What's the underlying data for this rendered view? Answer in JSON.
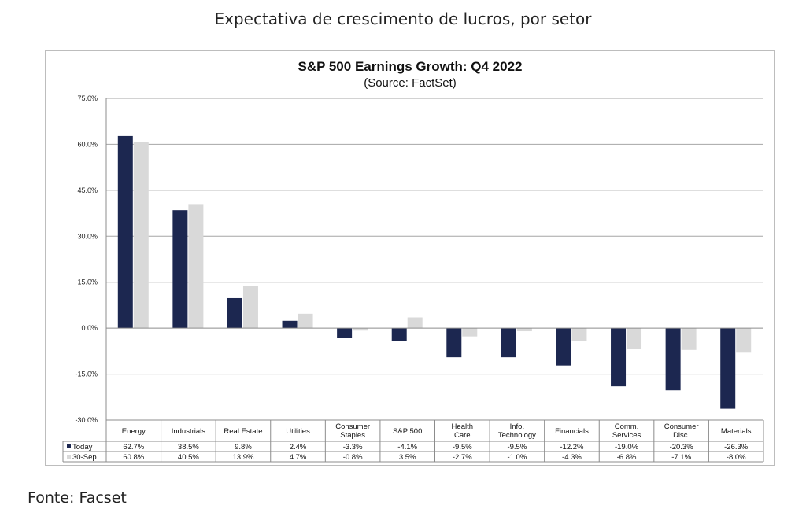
{
  "heading": "Expectativa de crescimento de lucros, por setor",
  "source": {
    "label": "Fonte:",
    "value": "Facset"
  },
  "chart_data": {
    "type": "bar",
    "title": "S&P 500 Earnings Growth: Q4 2022",
    "subtitle": "(Source: FactSet)",
    "ylim": [
      -30,
      75
    ],
    "yticks": [
      75,
      60,
      45,
      30,
      15,
      0,
      -15,
      -30
    ],
    "ytick_labels": [
      "75.0%",
      "60.0%",
      "45.0%",
      "30.0%",
      "15.0%",
      "0.0%",
      "-15.0%",
      "-30.0%"
    ],
    "grid": true,
    "legend": "table-left",
    "categories": [
      [
        "Energy"
      ],
      [
        "Industrials"
      ],
      [
        "Real Estate"
      ],
      [
        "Utilities"
      ],
      [
        "Consumer",
        "Staples"
      ],
      [
        "S&P 500"
      ],
      [
        "Health",
        "Care"
      ],
      [
        "Info.",
        "Technology"
      ],
      [
        "Financials"
      ],
      [
        "Comm.",
        "Services"
      ],
      [
        "Consumer",
        "Disc."
      ],
      [
        "Materials"
      ]
    ],
    "series": [
      {
        "name": "Today",
        "color": "#1c2750",
        "values": [
          62.7,
          38.5,
          9.8,
          2.4,
          -3.3,
          -4.1,
          -9.5,
          -9.5,
          -12.2,
          -19.0,
          -20.3,
          -26.3
        ],
        "labels": [
          "62.7%",
          "38.5%",
          "9.8%",
          "2.4%",
          "-3.3%",
          "-4.1%",
          "-9.5%",
          "-9.5%",
          "-12.2%",
          "-19.0%",
          "-20.3%",
          "-26.3%"
        ]
      },
      {
        "name": "30-Sep",
        "color": "#d9d9d9",
        "values": [
          60.8,
          40.5,
          13.9,
          4.7,
          -0.8,
          3.5,
          -2.7,
          -1.0,
          -4.3,
          -6.8,
          -7.1,
          -8.0
        ],
        "labels": [
          "60.8%",
          "40.5%",
          "13.9%",
          "4.7%",
          "-0.8%",
          "3.5%",
          "-2.7%",
          "-1.0%",
          "-4.3%",
          "-6.8%",
          "-7.1%",
          "-8.0%"
        ]
      }
    ]
  }
}
